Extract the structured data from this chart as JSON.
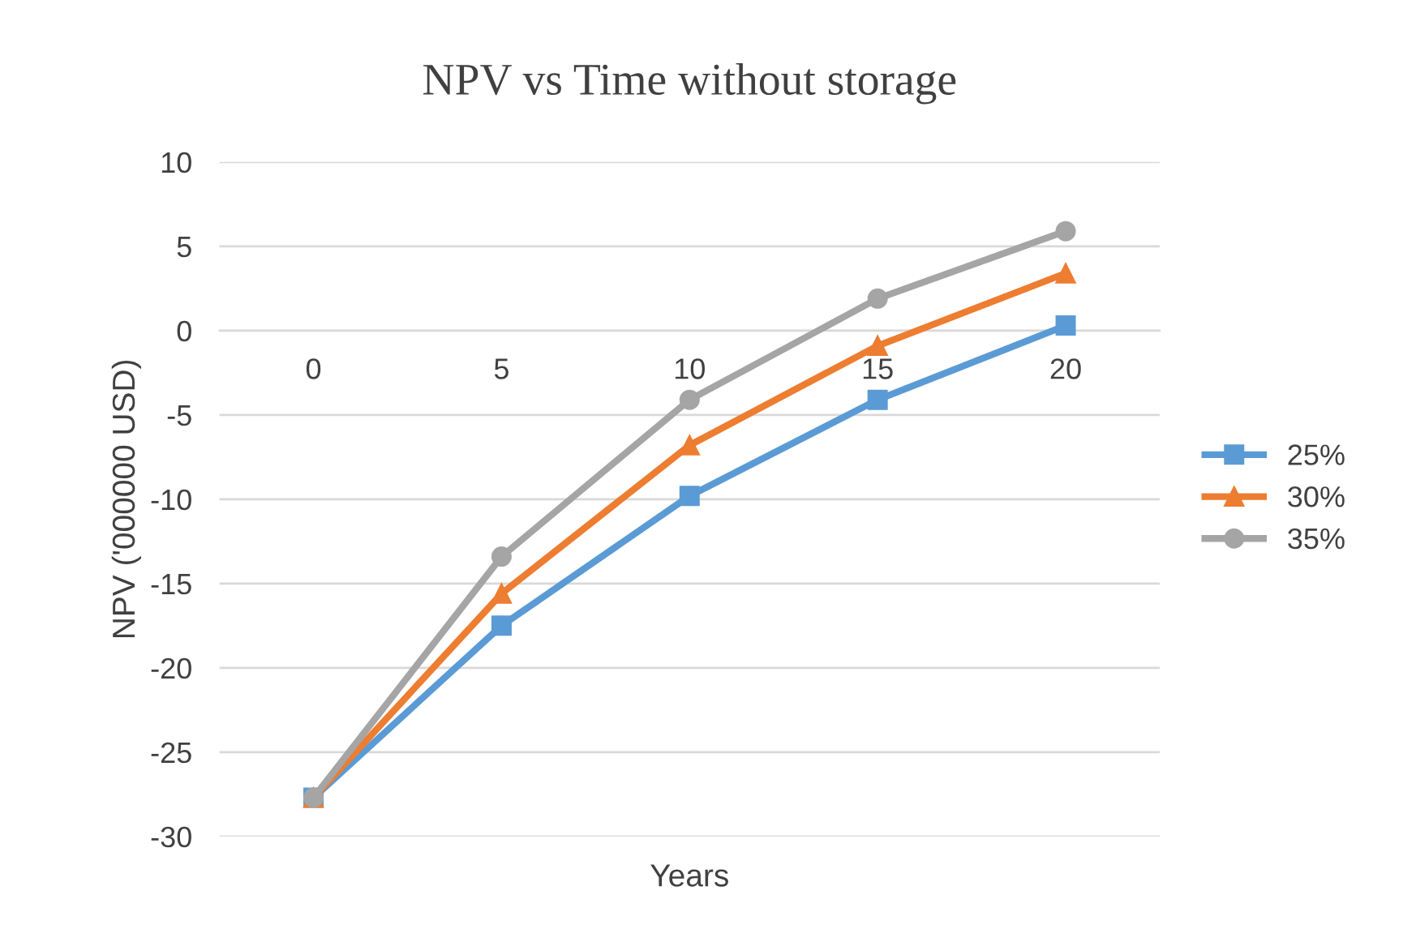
{
  "chart_data": {
    "type": "line",
    "title": "NPV vs Time without storage",
    "xlabel": "Years",
    "ylabel": "NPV ('000000 USD)",
    "categories": [
      "0",
      "5",
      "10",
      "15",
      "20"
    ],
    "series": [
      {
        "name": "25%",
        "color": "#5b9bd5",
        "marker": "square",
        "values": [
          -27.7,
          -17.5,
          -9.8,
          -4.1,
          0.3
        ]
      },
      {
        "name": "30%",
        "color": "#ed7d31",
        "marker": "triangle",
        "values": [
          -27.7,
          -15.6,
          -6.8,
          -0.9,
          3.4
        ]
      },
      {
        "name": "35%",
        "color": "#a5a5a5",
        "marker": "circle",
        "values": [
          -27.7,
          -13.4,
          -4.1,
          1.9,
          5.9
        ]
      }
    ],
    "ylim": [
      -30,
      10
    ],
    "yticks": [
      -30,
      -25,
      -20,
      -15,
      -10,
      -5,
      0,
      5,
      10
    ],
    "grid": "y",
    "legend": "right",
    "line_style": "solid"
  }
}
